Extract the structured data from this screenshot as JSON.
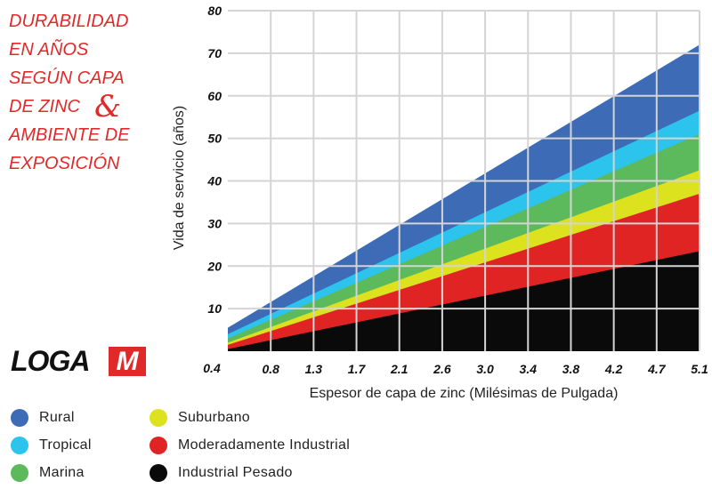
{
  "title_block": {
    "lines": [
      "DURABILIDAD",
      "EN AÑOS",
      "SEGÚN CAPA",
      "DE ZINC",
      "AMBIENTE DE",
      "EXPOSICIÓN"
    ],
    "ampersand": "&",
    "color": "#e02a2a"
  },
  "logo": {
    "text": "LOGA",
    "mark": "M"
  },
  "chart_data": {
    "type": "area",
    "title": "DURABILIDAD EN AÑOS SEGÚN CAPA DE ZINC & AMBIENTE DE EXPOSICIÓN",
    "xlabel": "Espesor de capa de zinc (Milésimas de Pulgada)",
    "ylabel": "Vida de servicio (años)",
    "categories": [
      "0.4",
      "0.8",
      "1.3",
      "1.7",
      "2.1",
      "2.6",
      "3.0",
      "3.4",
      "3.8",
      "4.2",
      "4.7",
      "5.1"
    ],
    "ylim": [
      0,
      80
    ],
    "yticks": [
      "10",
      "20",
      "30",
      "40",
      "50",
      "60",
      "70",
      "80"
    ],
    "grid": true,
    "stacking": "overlapping",
    "series": [
      {
        "name": "Rural",
        "color": "#3e6bb5",
        "start": 5.5,
        "end": 72
      },
      {
        "name": "Tropical",
        "color": "#2cc3ec",
        "start": 4,
        "end": 56.5
      },
      {
        "name": "Marina",
        "color": "#5cba5c",
        "start": 3,
        "end": 51
      },
      {
        "name": "Suburbano",
        "color": "#dde21f",
        "start": 2,
        "end": 42.5
      },
      {
        "name": "Moderadamente Industrial",
        "color": "#e02424",
        "start": 1.5,
        "end": 37
      },
      {
        "name": "Industrial Pesado",
        "color": "#0a0a0a",
        "start": 0.5,
        "end": 23.5
      }
    ]
  }
}
